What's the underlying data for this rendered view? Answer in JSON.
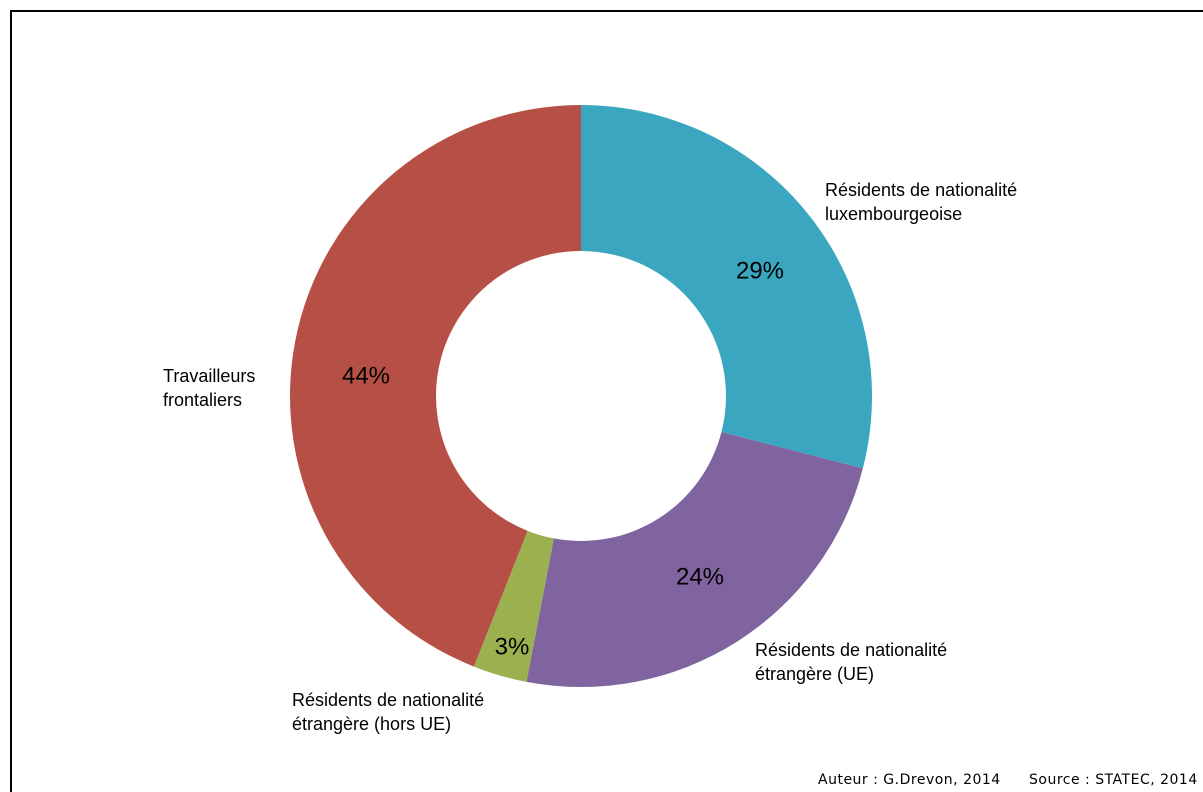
{
  "chart_data": {
    "type": "donut",
    "categories": [
      "Résidents de nationalité luxembourgeoise",
      "Résidents de nationalité étrangère (UE)",
      "Résidents de nationalité étrangère (hors UE)",
      "Travailleurs frontaliers"
    ],
    "values": [
      29,
      24,
      3,
      44
    ],
    "value_labels": [
      "29%",
      "24%",
      "3%",
      "44%"
    ],
    "colors": [
      "#3aa6bf",
      "#8064a0",
      "#9bb150",
      "#b65046"
    ],
    "annotations": [
      "Auteur : G.Drevon, 2014",
      "Source : STATEC, 2014"
    ]
  }
}
